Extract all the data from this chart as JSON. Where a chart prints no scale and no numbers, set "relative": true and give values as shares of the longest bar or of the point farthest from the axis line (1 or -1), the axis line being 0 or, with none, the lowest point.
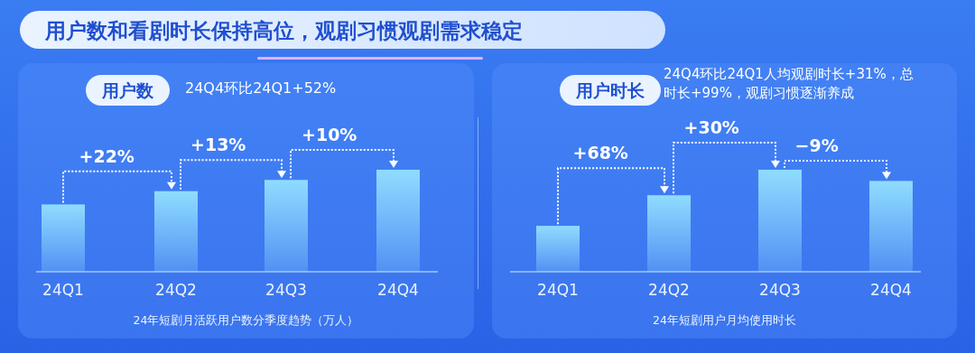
{
  "chart_data": [
    {
      "type": "other",
      "title": "用户数和看剧时长保持高位，观剧习惯观剧需求稳定"
    },
    {
      "type": "bar",
      "title": "用户数",
      "subtitle": "24Q4环比24Q1+52%",
      "xlabel": "24年短剧月活跃用户数分季度趋势（万人）",
      "relative": true,
      "categories": [
        "24Q1",
        "24Q2",
        "24Q3",
        "24Q4"
      ],
      "values": [
        0.66,
        0.79,
        0.9,
        1
      ],
      "color": "#8fdcff",
      "annotations": [
        "+22%",
        "+13%",
        "+10%"
      ]
    },
    {
      "type": "bar",
      "title": "用户时长",
      "subtitle": "24Q4环比24Q1人均观剧时长+31%，总时长+99%，观剧习惯逐渐养成",
      "xlabel": "24年短剧用户月均使用时长",
      "relative": true,
      "categories": [
        "24Q1",
        "24Q2",
        "24Q3",
        "24Q4"
      ],
      "values": [
        0.45,
        0.75,
        1,
        0.89
      ],
      "color": "#8fdcff",
      "annotations": [
        "+68%",
        "+30%",
        "−9%"
      ]
    }
  ]
}
